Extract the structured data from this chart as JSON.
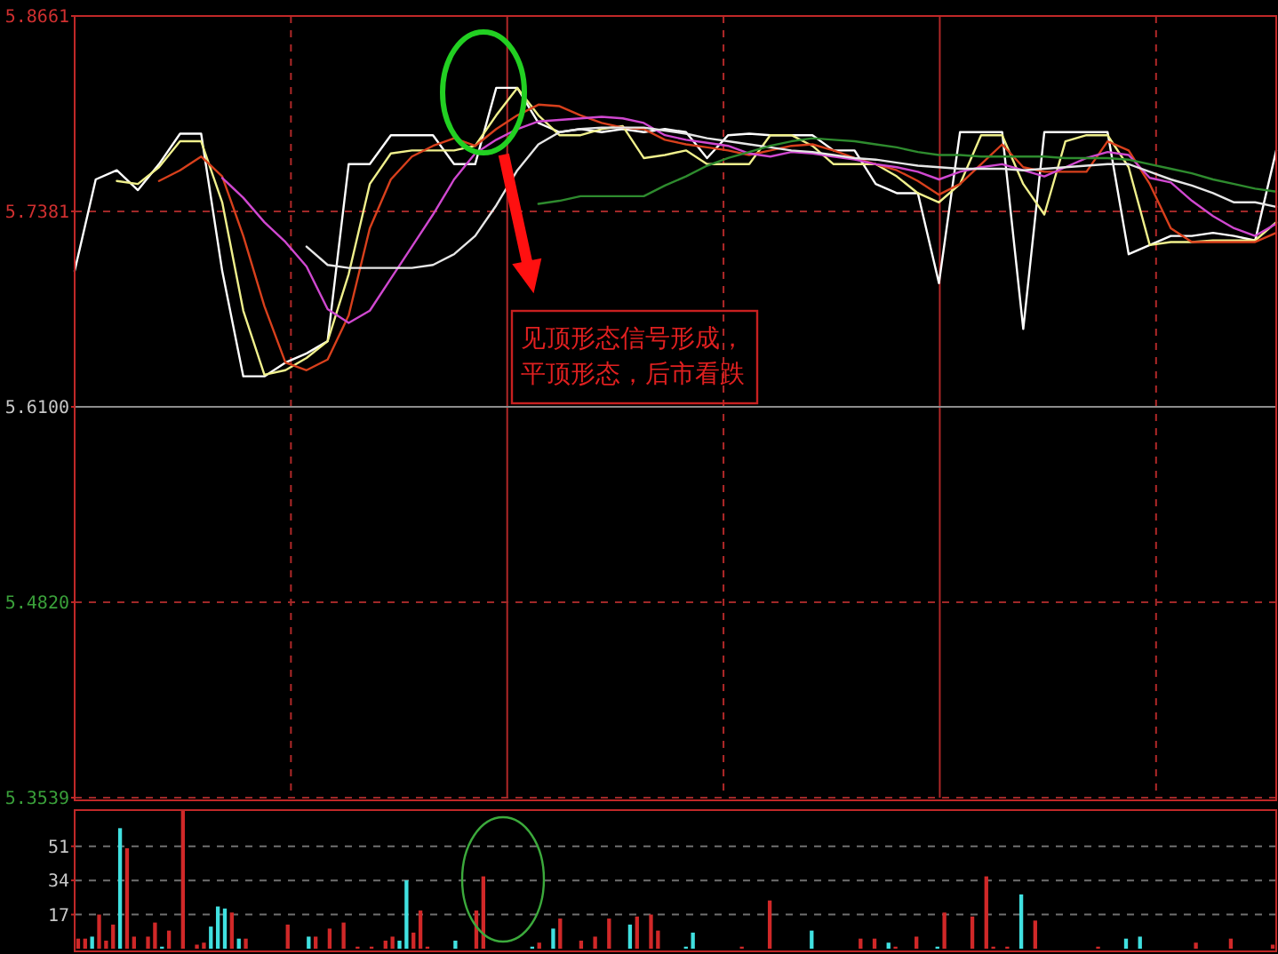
{
  "chart_data": [
    {
      "type": "line",
      "categories": [
        null,
        null,
        null,
        null,
        null,
        null,
        null,
        null,
        null,
        null,
        null,
        null,
        null,
        null,
        null,
        null,
        null,
        null,
        null,
        null,
        null,
        null,
        null,
        null,
        null,
        null,
        null,
        null,
        null,
        null,
        null,
        null,
        null,
        null,
        null,
        null,
        null,
        null,
        null,
        null,
        null,
        null,
        null,
        null,
        null,
        null,
        null,
        null,
        null,
        null,
        null,
        null,
        null,
        null,
        null,
        null,
        null,
        null
      ],
      "series": [
        {
          "color": "#ffffff",
          "values": [
            5.699,
            5.759,
            5.765,
            5.752,
            5.769,
            5.789,
            5.789,
            5.699,
            5.63,
            5.63,
            5.639,
            5.645,
            5.653,
            5.769,
            5.769,
            5.788,
            5.788,
            5.788,
            5.769,
            5.769,
            5.819,
            5.819,
            5.796,
            5.79,
            5.792,
            5.79,
            5.792,
            5.79,
            5.792,
            5.79,
            5.773,
            5.788,
            5.789,
            5.788,
            5.788,
            5.788,
            5.778,
            5.778,
            5.756,
            5.75,
            5.75,
            5.691,
            5.79,
            5.79,
            5.79,
            5.661,
            5.79,
            5.79,
            5.79,
            5.79,
            5.71,
            5.716,
            5.722,
            5.722,
            5.724,
            5.722,
            5.719,
            5.778
          ]
        },
        {
          "color": "#f0f08c",
          "values": [
            null,
            null,
            5.758,
            5.756,
            5.767,
            5.784,
            5.784,
            5.744,
            5.673,
            5.631,
            5.634,
            5.642,
            5.653,
            5.697,
            5.756,
            5.776,
            5.778,
            5.778,
            5.778,
            5.781,
            5.801,
            5.819,
            5.801,
            5.788,
            5.788,
            5.792,
            5.794,
            5.773,
            5.775,
            5.778,
            5.769,
            5.769,
            5.769,
            5.788,
            5.788,
            5.781,
            5.769,
            5.769,
            5.769,
            5.761,
            5.75,
            5.744,
            5.756,
            5.788,
            5.788,
            5.756,
            5.736,
            5.784,
            5.788,
            5.788,
            5.767,
            5.716,
            5.718,
            5.718,
            5.719,
            5.719,
            5.719,
            5.731
          ]
        },
        {
          "color": "#d8401c",
          "values": [
            null,
            null,
            null,
            null,
            5.758,
            5.765,
            5.774,
            5.761,
            5.722,
            5.676,
            5.639,
            5.634,
            5.641,
            5.67,
            5.727,
            5.759,
            5.774,
            5.781,
            5.786,
            5.781,
            5.792,
            5.801,
            5.808,
            5.807,
            5.801,
            5.796,
            5.793,
            5.792,
            5.785,
            5.782,
            5.78,
            5.778,
            5.775,
            5.778,
            5.781,
            5.782,
            5.778,
            5.773,
            5.769,
            5.765,
            5.758,
            5.749,
            5.756,
            5.769,
            5.782,
            5.767,
            5.764,
            5.764,
            5.764,
            5.784,
            5.778,
            5.756,
            5.727,
            5.718,
            5.718,
            5.718,
            5.718,
            5.724
          ]
        },
        {
          "color": "#d048d0",
          "values": [
            null,
            null,
            null,
            null,
            null,
            null,
            null,
            5.76,
            5.747,
            5.731,
            5.718,
            5.702,
            5.674,
            5.665,
            5.673,
            5.694,
            5.715,
            5.736,
            5.759,
            5.776,
            5.785,
            5.792,
            5.797,
            5.798,
            5.799,
            5.8,
            5.799,
            5.796,
            5.788,
            5.785,
            5.783,
            5.781,
            5.776,
            5.774,
            5.777,
            5.776,
            5.774,
            5.772,
            5.769,
            5.767,
            5.764,
            5.759,
            5.764,
            5.767,
            5.769,
            5.765,
            5.761,
            5.767,
            5.773,
            5.777,
            5.775,
            5.76,
            5.757,
            5.745,
            5.735,
            5.727,
            5.722,
            5.73
          ]
        },
        {
          "color": "#e6e6e6",
          "values": [
            null,
            null,
            null,
            null,
            null,
            null,
            null,
            null,
            null,
            null,
            null,
            5.715,
            5.703,
            5.701,
            5.701,
            5.701,
            5.701,
            5.703,
            5.71,
            5.722,
            5.742,
            5.765,
            5.782,
            5.79,
            5.792,
            5.793,
            5.793,
            5.793,
            5.791,
            5.789,
            5.786,
            5.784,
            5.782,
            5.78,
            5.778,
            5.777,
            5.775,
            5.773,
            5.772,
            5.77,
            5.768,
            5.767,
            5.766,
            5.766,
            5.766,
            5.765,
            5.766,
            5.767,
            5.768,
            5.769,
            5.769,
            5.764,
            5.759,
            5.755,
            5.75,
            5.744,
            5.744,
            5.741
          ]
        },
        {
          "color": "#2e8b2e",
          "values": [
            null,
            null,
            null,
            null,
            null,
            null,
            null,
            null,
            null,
            null,
            null,
            null,
            null,
            null,
            null,
            null,
            null,
            null,
            null,
            null,
            null,
            null,
            5.743,
            5.745,
            5.748,
            5.748,
            5.748,
            5.748,
            5.755,
            5.761,
            5.768,
            5.773,
            5.777,
            5.781,
            5.784,
            5.786,
            5.785,
            5.784,
            5.782,
            5.78,
            5.777,
            5.775,
            5.775,
            5.774,
            5.774,
            5.774,
            5.774,
            5.773,
            5.773,
            5.773,
            5.772,
            5.769,
            5.766,
            5.763,
            5.759,
            5.756,
            5.753,
            5.751
          ]
        }
      ],
      "ylim": [
        5.3539,
        5.8661
      ],
      "yticks": [
        5.3539,
        {
          "value": 5.482,
          "label": "5.4820"
        },
        {
          "value": 5.61,
          "label": "5.6100"
        },
        5.7381,
        5.8661
      ],
      "ref_lines": [
        {
          "axis": "y",
          "value": 5.61,
          "color": "#8c8c8c",
          "line_style": "solid"
        }
      ],
      "annotations": [
        "见顶形态信号形成，平顶形态，后市看跌"
      ],
      "grid": true,
      "marker": "none",
      "line_style": "solid",
      "tick_labels": "y"
    },
    {
      "type": "bar",
      "categories": [
        null,
        null,
        null,
        null,
        null,
        null,
        null,
        null,
        null,
        null,
        null,
        null,
        null,
        null,
        null,
        null,
        null,
        null,
        null,
        null,
        null,
        null,
        null,
        null,
        null,
        null,
        null,
        null,
        null,
        null,
        null,
        null,
        null,
        null,
        null,
        null,
        null,
        null,
        null,
        null,
        null,
        null,
        null,
        null,
        null,
        null,
        null,
        null,
        null,
        null,
        null,
        null,
        null,
        null,
        null,
        null,
        null,
        null,
        null,
        null,
        null,
        null,
        null,
        null,
        null,
        null,
        null,
        null,
        null,
        null,
        null,
        null,
        null,
        null,
        null,
        null,
        null,
        null,
        null,
        null,
        null,
        null,
        null,
        null,
        null,
        null,
        null,
        null,
        null,
        null,
        null,
        null,
        null,
        null,
        null,
        null,
        null,
        null,
        null,
        null,
        null,
        null,
        null,
        null,
        null,
        null,
        null,
        null,
        null,
        null,
        null,
        null,
        null,
        null,
        null,
        null,
        null,
        null,
        null,
        null,
        null,
        null,
        null,
        null,
        null,
        null,
        null,
        null,
        null,
        null,
        null,
        null,
        null,
        null,
        null,
        null,
        null,
        null,
        null,
        null,
        null,
        null,
        null,
        null,
        null,
        null,
        null,
        null,
        null,
        null,
        null,
        null,
        null,
        null,
        null,
        null,
        null,
        null,
        null,
        null,
        null,
        null,
        null,
        null,
        null,
        null,
        null,
        null,
        null,
        null,
        null,
        null
      ],
      "series": [
        {
          "color": "#d02828",
          "values": [
            5,
            5,
            null,
            17,
            4,
            12,
            null,
            50,
            6,
            null,
            6,
            13,
            null,
            9,
            null,
            69,
            null,
            2,
            3,
            null,
            null,
            null,
            18,
            null,
            5,
            null,
            null,
            null,
            null,
            null,
            12,
            null,
            null,
            null,
            6,
            null,
            10,
            null,
            13,
            null,
            1,
            null,
            1,
            null,
            4,
            6,
            null,
            null,
            8,
            19,
            1,
            null,
            null,
            null,
            null,
            null,
            null,
            19,
            36,
            null,
            null,
            null,
            null,
            null,
            null,
            null,
            3,
            null,
            null,
            15,
            null,
            null,
            4,
            null,
            6,
            null,
            15,
            null,
            null,
            null,
            16,
            null,
            17,
            9,
            null,
            null,
            null,
            null,
            null,
            null,
            null,
            null,
            null,
            null,
            null,
            1,
            null,
            null,
            null,
            24,
            null,
            null,
            null,
            null,
            null,
            null,
            null,
            null,
            null,
            null,
            null,
            null,
            5,
            null,
            5,
            null,
            null,
            1,
            null,
            null,
            6,
            null,
            null,
            null,
            18,
            null,
            null,
            null,
            16,
            null,
            36,
            1,
            null,
            1,
            null,
            null,
            null,
            14,
            null,
            null,
            null,
            null,
            null,
            null,
            null,
            null,
            1,
            null,
            null,
            null,
            null,
            null,
            null,
            null,
            null,
            null,
            null,
            null,
            null,
            null,
            3,
            null,
            null,
            null,
            null,
            5,
            null,
            null,
            null,
            null,
            null,
            2
          ]
        },
        {
          "color": "#40e0e0",
          "values": [
            null,
            null,
            6,
            null,
            null,
            null,
            60,
            null,
            null,
            null,
            null,
            null,
            1,
            null,
            null,
            null,
            null,
            null,
            null,
            11,
            21,
            20,
            null,
            5,
            null,
            null,
            null,
            null,
            null,
            null,
            null,
            null,
            null,
            6,
            null,
            null,
            null,
            null,
            null,
            null,
            null,
            null,
            null,
            null,
            null,
            null,
            4,
            34,
            null,
            null,
            null,
            null,
            null,
            null,
            4,
            null,
            null,
            null,
            null,
            null,
            null,
            null,
            null,
            null,
            null,
            1,
            null,
            null,
            10,
            null,
            null,
            null,
            null,
            null,
            null,
            null,
            null,
            null,
            null,
            12,
            null,
            null,
            null,
            null,
            null,
            null,
            null,
            1,
            8,
            null,
            null,
            null,
            null,
            null,
            null,
            null,
            null,
            null,
            null,
            null,
            null,
            null,
            null,
            null,
            null,
            9,
            null,
            null,
            null,
            null,
            null,
            null,
            null,
            null,
            null,
            null,
            3,
            null,
            null,
            null,
            null,
            null,
            null,
            1,
            null,
            null,
            null,
            null,
            null,
            null,
            null,
            null,
            null,
            null,
            null,
            27,
            null,
            null,
            null,
            null,
            null,
            null,
            null,
            null,
            null,
            null,
            null,
            null,
            null,
            null,
            5,
            null,
            6,
            null,
            null,
            null,
            null,
            null,
            null,
            null,
            null,
            null,
            null,
            null,
            null,
            null,
            null,
            null,
            null,
            null,
            null,
            null
          ]
        }
      ],
      "ylim": [
        0,
        69
      ],
      "yticks": [
        17,
        34,
        51
      ],
      "grid": "y",
      "tick_labels": "y"
    }
  ]
}
